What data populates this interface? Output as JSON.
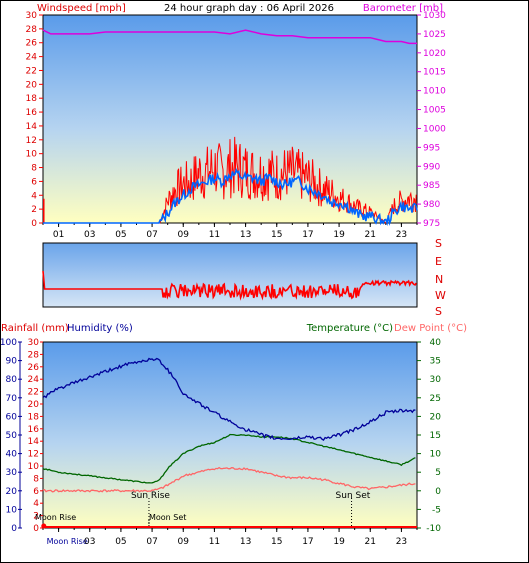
{
  "colors": {
    "wind": "#ff0000",
    "gust": "#0066ff",
    "baro": "#dd00dd",
    "rain": "#ff0000",
    "humidity": "#000099",
    "temperature": "#006600",
    "dewpoint": "#ff6666",
    "sky_top": "#5a9bea",
    "sky_bottom": "#ffffc0"
  },
  "top": {
    "title": "24 hour graph day : 06 April 2026",
    "left_label": "Windspeed [mph]",
    "right_label": "Barometer [mb]",
    "left_ticks": [
      "0",
      "2",
      "4",
      "6",
      "8",
      "10",
      "12",
      "14",
      "16",
      "18",
      "20",
      "22",
      "24",
      "26",
      "28",
      "30"
    ],
    "right_ticks": [
      "975",
      "980",
      "985",
      "990",
      "995",
      "1000",
      "1005",
      "1010",
      "1015",
      "1020",
      "1025",
      "1030"
    ],
    "x_ticks": [
      "01",
      "03",
      "05",
      "07",
      "09",
      "11",
      "13",
      "15",
      "17",
      "19",
      "21",
      "23"
    ]
  },
  "wind_dir": {
    "labels": [
      "S",
      "E",
      "N",
      "W",
      "S"
    ]
  },
  "bottom": {
    "rain_label": "Rainfall (mm)",
    "humidity_label": "Humidity (%)",
    "temp_label": "Temperature (°C)",
    "dew_label": "Dew Point (°C)",
    "humidity_ticks": [
      "0",
      "10",
      "20",
      "30",
      "40",
      "50",
      "60",
      "70",
      "80",
      "90",
      "100"
    ],
    "rain_ticks": [
      "0",
      "2",
      "4",
      "6",
      "8",
      "10",
      "12",
      "14",
      "16",
      "18",
      "20",
      "22",
      "24",
      "26",
      "28",
      "30"
    ],
    "temp_ticks": [
      "-10",
      "-5",
      "0",
      "5",
      "10",
      "15",
      "20",
      "25",
      "30",
      "35",
      "40"
    ],
    "x_ticks": [
      "Moon Rise",
      "03",
      "05",
      "07",
      "09",
      "11",
      "13",
      "15",
      "17",
      "19",
      "21",
      "23"
    ],
    "annotations": {
      "sun_rise": "Sun Rise",
      "sun_set": "Sun Set",
      "moon_rise": "Moon Rise",
      "moon_set": "Moon Set"
    }
  },
  "chart_data": [
    {
      "type": "line",
      "title": "24 hour graph day : 06 April 2026",
      "x_unit": "hour",
      "xlim": [
        0,
        24
      ],
      "ylabel": "Windspeed [mph]",
      "ylim": [
        0,
        30
      ],
      "y2label": "Barometer [mb]",
      "y2lim": [
        975,
        1030
      ],
      "series": [
        {
          "name": "Windspeed [mph]",
          "axis": "left",
          "x": [
            0,
            7.5,
            8,
            8.5,
            9,
            9.5,
            10,
            10.5,
            11,
            11.5,
            12,
            12.5,
            13,
            13.5,
            14,
            14.5,
            15,
            15.5,
            16,
            16.5,
            17,
            17.5,
            18,
            18.5,
            19,
            19.5,
            20,
            20.5,
            21,
            21.5,
            22,
            22.5,
            23,
            23.5
          ],
          "y": [
            0,
            0,
            1.5,
            3,
            4,
            5,
            5.5,
            6,
            6.5,
            6,
            7,
            7,
            6.5,
            6.5,
            6,
            6.5,
            6,
            5.5,
            6,
            6,
            5,
            4.5,
            4,
            3,
            3,
            2.5,
            1.5,
            1,
            1,
            0.5,
            0,
            1.5,
            2.5,
            2
          ]
        },
        {
          "name": "Gust",
          "axis": "left",
          "x": [
            0,
            7.5,
            8,
            8.5,
            9,
            9.5,
            10,
            10.5,
            11,
            11.5,
            12,
            12.5,
            13,
            13.5,
            14,
            14.5,
            15,
            15.5,
            16,
            16.5,
            17,
            17.5,
            18,
            18.5,
            19,
            19.5,
            20,
            20.5,
            21,
            21.5,
            22,
            22.5,
            23,
            23.5
          ],
          "y": [
            0,
            0,
            4,
            6,
            7,
            7.5,
            9,
            9,
            10,
            9,
            10,
            10,
            9.5,
            9,
            9,
            9,
            8.5,
            9,
            9,
            8.5,
            8,
            7,
            6,
            5.5,
            4.5,
            4,
            3,
            2.5,
            2,
            1,
            0,
            3,
            4,
            4.5
          ]
        },
        {
          "name": "Barometer [mb]",
          "axis": "right",
          "x": [
            0,
            0.5,
            1,
            2,
            3,
            4,
            5,
            6,
            7,
            8,
            9,
            10,
            11,
            12,
            13,
            14,
            15,
            16,
            17,
            18,
            19,
            20,
            21,
            22,
            23,
            23.5,
            24
          ],
          "y": [
            1026,
            1025,
            1025,
            1025,
            1025,
            1025.5,
            1025.5,
            1025.5,
            1025.5,
            1025.5,
            1025.5,
            1025.5,
            1025.5,
            1025,
            1026,
            1025,
            1024.5,
            1024.5,
            1024,
            1024,
            1024,
            1024,
            1024,
            1023,
            1023,
            1022.5,
            1022.5
          ]
        }
      ]
    },
    {
      "type": "line",
      "title": "",
      "x_unit": "hour",
      "xlim": [
        0,
        24
      ],
      "ylabel": "Wind direction",
      "series": [
        {
          "name": "Wind direction",
          "x": [
            0,
            0.2,
            7.5,
            8,
            9,
            10,
            11,
            12,
            13,
            14,
            15,
            16,
            17,
            18,
            19,
            20,
            21,
            22,
            23,
            24
          ],
          "y": [
            "S",
            "E",
            "E",
            "E",
            "E",
            "N",
            "E",
            "N",
            "E",
            "E",
            "E",
            "E",
            "E",
            "E",
            "E",
            "E",
            "E",
            "E",
            "E",
            "E"
          ]
        }
      ]
    },
    {
      "type": "line",
      "title": "",
      "x_unit": "hour",
      "xlim": [
        0,
        24
      ],
      "ylabel": "Humidity (%)",
      "ylim": [
        0,
        100
      ],
      "y2label": "Temperature (°C)",
      "y2lim": [
        -10,
        40
      ],
      "series": [
        {
          "name": "Humidity (%)",
          "axis": "left",
          "x": [
            0,
            1,
            2,
            3,
            4,
            5,
            6,
            7,
            7.5,
            8,
            8.5,
            9,
            10,
            11,
            12,
            13,
            14,
            15,
            16,
            17,
            18,
            19,
            20,
            21,
            22,
            23,
            24
          ],
          "y": [
            70,
            75,
            78,
            81,
            84,
            87,
            89,
            91,
            90,
            85,
            80,
            72,
            67,
            62,
            57,
            53,
            50,
            48,
            48,
            49,
            48,
            50,
            53,
            57,
            62,
            63,
            63
          ]
        },
        {
          "name": "Temperature (°C)",
          "axis": "right",
          "x": [
            0,
            1,
            2,
            3,
            4,
            5,
            6,
            7,
            7.5,
            8,
            8.5,
            9,
            10,
            11,
            12,
            13,
            14,
            15,
            16,
            17,
            18,
            19,
            20,
            21,
            22,
            23,
            24
          ],
          "y": [
            6,
            5,
            4.5,
            4,
            3.5,
            3,
            2.5,
            2,
            3,
            6,
            8,
            10,
            12,
            13,
            15,
            15,
            14.5,
            14.5,
            14,
            13,
            12,
            11,
            10,
            9,
            8,
            7,
            9
          ]
        },
        {
          "name": "Dew Point (°C)",
          "axis": "right",
          "x": [
            0,
            1,
            2,
            3,
            4,
            5,
            6,
            7,
            7.5,
            8,
            9,
            10,
            11,
            12,
            13,
            14,
            15,
            16,
            17,
            18,
            19,
            20,
            21,
            22,
            23,
            24
          ],
          "y": [
            0,
            0,
            0,
            0,
            0,
            0,
            0,
            0,
            0.5,
            1.5,
            4,
            5,
            6,
            6,
            6,
            5,
            4,
            3.5,
            3.5,
            3,
            2,
            1,
            0.5,
            1,
            1.5,
            2
          ]
        },
        {
          "name": "Rainfall (mm)",
          "axis": "left",
          "x": [
            0,
            24
          ],
          "y": [
            0,
            0
          ]
        }
      ]
    }
  ]
}
